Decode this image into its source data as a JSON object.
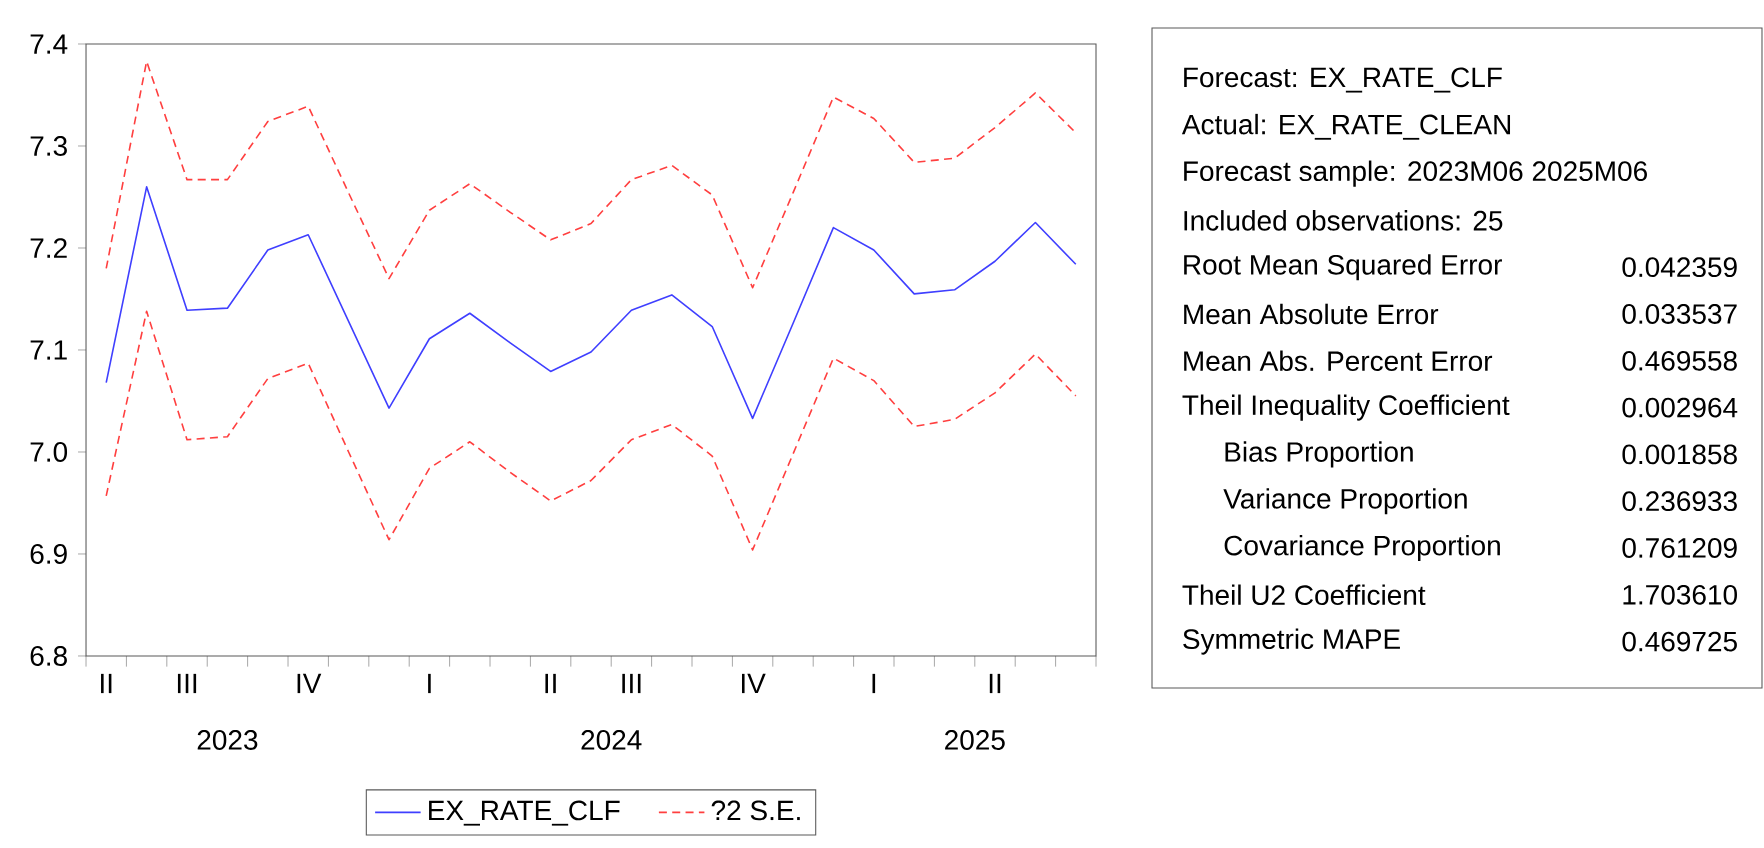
{
  "chart_data": [
    {
      "type": "line",
      "categories": [
        "II",
        null,
        "III",
        null,
        null,
        "IV",
        null,
        null,
        "I",
        null,
        null,
        "II",
        null,
        "III",
        null,
        null,
        "IV",
        null,
        null,
        "I",
        null,
        null,
        "II",
        null,
        null
      ],
      "annotations": [
        "2023",
        "2024",
        "2025"
      ],
      "ylim": [
        6.8,
        7.4
      ],
      "yticks": [
        {
          "value": 6.8,
          "label": "6.8"
        },
        {
          "value": 6.9,
          "label": "6.9"
        },
        {
          "value": 7.0,
          "label": "7.0"
        },
        {
          "value": 7.1,
          "label": "7.1"
        },
        {
          "value": 7.2,
          "label": "7.2"
        },
        {
          "value": 7.3,
          "label": "7.3"
        },
        {
          "value": 7.4,
          "label": "7.4"
        }
      ],
      "legend": "bottom",
      "series": [
        {
          "name": "EX_RATE_CLF",
          "color": "#3f3fff",
          "line_style": "solid",
          "values": [
            7.068,
            7.26,
            7.139,
            7.141,
            7.198,
            7.213,
            7.128,
            7.043,
            7.111,
            7.136,
            7.107,
            7.079,
            7.098,
            7.139,
            7.154,
            7.123,
            7.033,
            7.126,
            7.22,
            7.198,
            7.155,
            7.159,
            7.187,
            7.225,
            7.184
          ]
        },
        {
          "name": "?2 S.E.",
          "color": "#ff3f3f",
          "line_style": "dashed",
          "values": [
            7.18,
            7.383,
            7.267,
            7.267,
            7.324,
            7.339,
            7.254,
            7.17,
            7.237,
            7.263,
            7.235,
            7.208,
            7.224,
            7.267,
            7.281,
            7.252,
            7.161,
            7.254,
            7.348,
            7.327,
            7.284,
            7.288,
            7.318,
            7.352,
            7.313
          ]
        },
        {
          "color": "#ff3f3f",
          "line_style": "dashed",
          "values": [
            6.957,
            7.138,
            7.012,
            7.015,
            7.072,
            7.087,
            7.0,
            6.914,
            6.984,
            7.01,
            6.98,
            6.952,
            6.972,
            7.012,
            7.027,
            6.996,
            6.904,
            6.998,
            7.092,
            7.07,
            7.025,
            7.032,
            7.058,
            7.096,
            7.055
          ]
        }
      ]
    },
    {
      "type": "other",
      "annotations": [
        "Forecast: EX_RATE_CLF",
        "Actual: EX_RATE_CLEAN",
        "Forecast sample: 2023M06 2025M06",
        "Included observations: 25"
      ],
      "categories": [
        "Root Mean Squared Error",
        "Mean Absolute Error",
        "Mean Abs. Percent Error",
        "Theil Inequality Coefficient",
        "Bias Proportion",
        "Variance Proportion",
        "Covariance Proportion",
        "Theil U2 Coefficient",
        "Symmetric MAPE"
      ],
      "value_labels": [
        "0.042359",
        "0.033537",
        "0.469558",
        "0.002964",
        "0.001858",
        "0.236933",
        "0.761209",
        "1.703610",
        "0.469725"
      ]
    }
  ]
}
